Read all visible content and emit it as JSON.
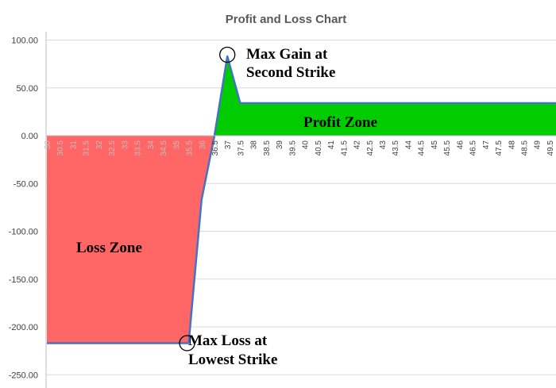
{
  "chart_data": {
    "type": "area",
    "title": "Profit and Loss Chart",
    "xlabel": "",
    "ylabel": "",
    "ylim": [
      -260,
      120
    ],
    "yticks": [
      "100.00",
      "50.00",
      "0.00",
      "-50.00",
      "-100.00",
      "-150.00",
      "-200.00",
      "-250.00"
    ],
    "ytick_values": [
      100,
      50,
      0,
      -50,
      -100,
      -150,
      -200,
      -250
    ],
    "x_tick_labels": [
      "30",
      "30.5",
      "31",
      "31.5",
      "32",
      "32.5",
      "33",
      "33.5",
      "34",
      "34.5",
      "35",
      "35.5",
      "36",
      "36.5",
      "37",
      "37.5",
      "38",
      "38.5",
      "39",
      "39.5",
      "40",
      "40.5",
      "41",
      "41.5",
      "42",
      "42.5",
      "43",
      "43.5",
      "44",
      "44.5",
      "45",
      "45.5",
      "46",
      "46.5",
      "47",
      "47.5",
      "48",
      "48.5",
      "49",
      "49.5"
    ],
    "x": [
      30,
      30.5,
      31,
      31.5,
      32,
      32.5,
      33,
      33.5,
      34,
      34.5,
      35,
      35.5,
      36,
      36.5,
      37,
      37.5,
      38,
      38.5,
      39,
      39.5,
      40,
      40.5,
      41,
      41.5,
      42,
      42.5,
      43,
      43.5,
      44,
      44.5,
      45,
      45.5,
      46,
      46.5,
      47,
      47.5,
      48,
      48.5,
      49,
      49.5
    ],
    "y": [
      -217,
      -217,
      -217,
      -217,
      -217,
      -217,
      -217,
      -217,
      -217,
      -217,
      -217,
      -217,
      -67,
      0,
      83,
      34,
      34,
      34,
      34,
      34,
      34,
      34,
      34,
      34,
      34,
      34,
      34,
      34,
      34,
      34,
      34,
      34,
      34,
      34,
      34,
      34,
      34,
      34,
      34,
      34
    ],
    "grid": true,
    "legend": "none",
    "colors": {
      "line": "#4472c4",
      "loss_fill": "#ff6666",
      "profit_fill": "#00cc00",
      "grid": "#d9d9d9",
      "axis": "#bfbfbf"
    },
    "annotations": {
      "max_gain": [
        "Max Gain at",
        "Second Strike"
      ],
      "max_loss": [
        "Max Loss at",
        "Lowest Strike"
      ],
      "profit_zone": "Profit Zone",
      "loss_zone": "Loss Zone"
    }
  }
}
